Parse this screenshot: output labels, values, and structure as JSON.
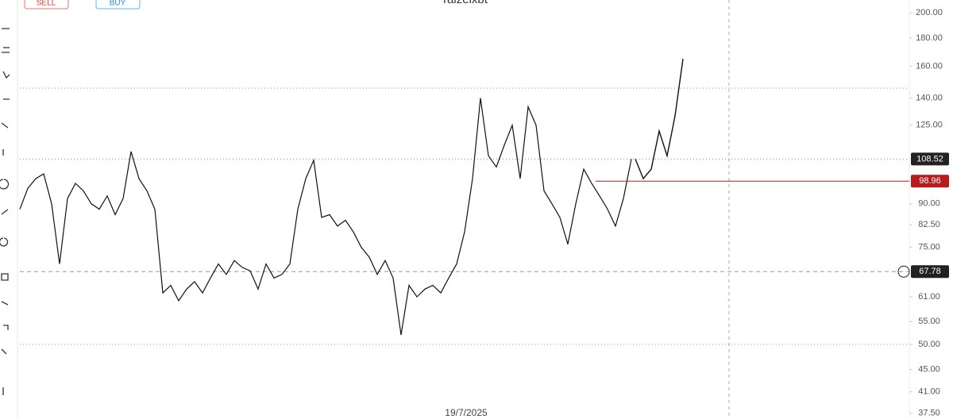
{
  "toolbar": {
    "sell": "SELL",
    "buy": "BUY"
  },
  "chart_data": {
    "type": "line",
    "title": "raizelxbt",
    "x_label": "19/7/2025",
    "log_scale": true,
    "ylim": [
      36.6,
      211
    ],
    "yticks": [
      {
        "value": 200,
        "label": "200.00"
      },
      {
        "value": 180,
        "label": "180.00"
      },
      {
        "value": 160,
        "label": "160.00"
      },
      {
        "value": 140,
        "label": "140.00"
      },
      {
        "value": 125,
        "label": "125.00"
      },
      {
        "value": 90,
        "label": "90.00"
      },
      {
        "value": 82.5,
        "label": "82.50"
      },
      {
        "value": 75,
        "label": "75.00"
      },
      {
        "value": 61,
        "label": "61.00"
      },
      {
        "value": 55,
        "label": "55.00"
      },
      {
        "value": 50,
        "label": "50.00"
      },
      {
        "value": 45,
        "label": "45.00"
      },
      {
        "value": 41,
        "label": "41.00"
      },
      {
        "value": 37.5,
        "label": "37.50"
      }
    ],
    "series": [
      {
        "color": "#111111",
        "values": [
          88,
          96,
          100,
          102,
          90,
          70,
          92,
          98,
          95,
          90,
          88,
          93,
          86,
          92,
          112,
          100,
          95,
          88,
          62,
          64,
          60,
          63,
          65,
          62,
          66,
          70,
          67,
          71,
          69,
          68,
          63,
          70,
          66,
          67,
          70,
          88,
          100,
          108,
          85,
          86,
          82,
          84,
          80,
          75,
          72,
          67,
          71,
          66,
          52,
          64,
          61,
          63,
          64,
          62,
          66,
          70,
          80,
          100,
          140,
          110,
          105,
          115,
          125,
          100,
          135,
          125,
          95,
          90,
          85,
          76,
          90,
          104,
          98,
          93,
          88,
          82,
          92,
          108.52
        ]
      },
      {
        "color": "#111111",
        "values": [
          108.52,
          100,
          104,
          122,
          110,
          130,
          165
        ]
      }
    ],
    "hlines": [
      146,
      108.52,
      67.78,
      50
    ],
    "price_labels": [
      108.52,
      98.96,
      67.78
    ],
    "alert_color": "#b71c1c"
  }
}
